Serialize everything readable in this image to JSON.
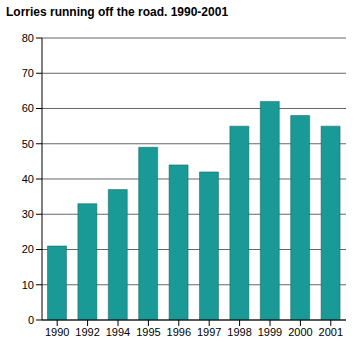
{
  "chart_data": {
    "type": "bar",
    "title": "Lorries running off the road. 1990-2001",
    "categories": [
      "1990",
      "1992",
      "1994",
      "1995",
      "1996",
      "1997",
      "1998",
      "1999",
      "2000",
      "2001"
    ],
    "values": [
      21,
      33,
      37,
      49,
      44,
      42,
      55,
      62,
      58,
      55
    ],
    "color": "#1a9a96",
    "ylim": [
      0,
      80
    ],
    "yticks": [
      0,
      10,
      20,
      30,
      40,
      50,
      60,
      70,
      80
    ],
    "grid": true
  }
}
